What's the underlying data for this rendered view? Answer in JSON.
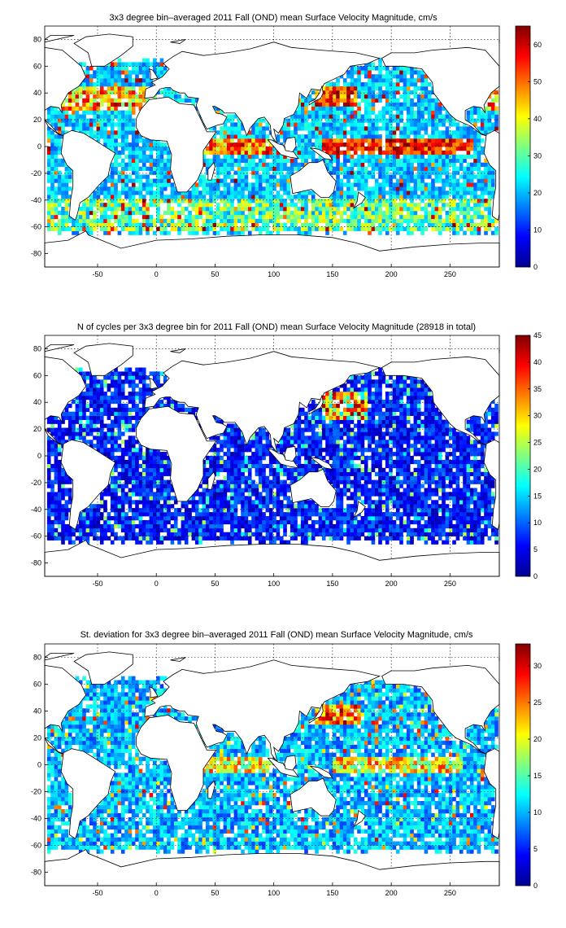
{
  "chart_data": [
    {
      "type": "heatmap",
      "title": "3x3 degree bin–averaged 2011 Fall (OND) mean Surface Velocity Magnitude, cm/s",
      "x_ticks": [
        "-50",
        "0",
        "50",
        "100",
        "150",
        "200",
        "250"
      ],
      "y_ticks": [
        "80",
        "60",
        "40",
        "20",
        "0",
        "-20",
        "-40",
        "-60",
        "-80"
      ],
      "xlim": [
        -95,
        292
      ],
      "ylim": [
        -90,
        90
      ],
      "grid": true,
      "colormap": "jet",
      "colorbar_range": [
        0,
        65
      ],
      "colorbar_ticks": [
        "60",
        "50",
        "40",
        "30",
        "20",
        "10",
        "0"
      ],
      "bin_size_deg": 3,
      "typical_value": 20,
      "high_value_regions": [
        "equatorial Pacific",
        "Gulf Stream",
        "Kuroshio",
        "Agulhas",
        "Antarctic Circumpolar Current",
        "equatorial Indian Ocean"
      ]
    },
    {
      "type": "heatmap",
      "title": "N of cycles per 3x3 degree bin for 2011 Fall (OND) mean Surface Velocity Magnitude (28918 in total)",
      "x_ticks": [
        "-50",
        "0",
        "50",
        "100",
        "150",
        "200",
        "250"
      ],
      "y_ticks": [
        "80",
        "60",
        "40",
        "20",
        "0",
        "-20",
        "-40",
        "-60",
        "-80"
      ],
      "xlim": [
        -95,
        292
      ],
      "ylim": [
        -90,
        90
      ],
      "grid": true,
      "colormap": "jet",
      "colorbar_range": [
        0,
        45
      ],
      "colorbar_ticks": [
        "45",
        "40",
        "35",
        "30",
        "25",
        "20",
        "15",
        "10",
        "5",
        "0"
      ],
      "bin_size_deg": 3,
      "typical_value": 8,
      "high_value_regions": [
        "Kuroshio extension",
        "North Pacific",
        "Gulf Stream"
      ]
    },
    {
      "type": "heatmap",
      "title": "St. deviation for 3x3 degree bin–averaged 2011 Fall (OND) mean Surface Velocity Magnitude, cm/s",
      "x_ticks": [
        "-50",
        "0",
        "50",
        "100",
        "150",
        "200",
        "250"
      ],
      "y_ticks": [
        "80",
        "60",
        "40",
        "20",
        "0",
        "-20",
        "-40",
        "-60",
        "-80"
      ],
      "xlim": [
        -95,
        292
      ],
      "ylim": [
        -90,
        90
      ],
      "grid": true,
      "colormap": "jet",
      "colorbar_range": [
        0,
        33
      ],
      "colorbar_ticks": [
        "30",
        "25",
        "20",
        "15",
        "10",
        "5",
        "0"
      ],
      "bin_size_deg": 3,
      "typical_value": 10,
      "high_value_regions": [
        "Kuroshio extension",
        "Gulf Stream",
        "equatorial Pacific",
        "equatorial Indian Ocean"
      ]
    }
  ]
}
